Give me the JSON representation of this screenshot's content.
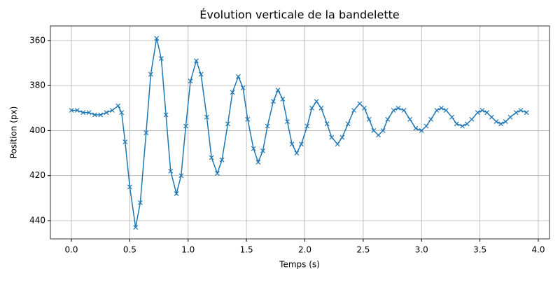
{
  "chart_data": {
    "type": "line",
    "title": "Évolution verticale de la bandelette",
    "x_label": "Temps (s)",
    "y_label": "Position (px)",
    "x": [
      0,
      0.05,
      0.1,
      0.15,
      0.2,
      0.25,
      0.3,
      0.35,
      0.4,
      0.43,
      0.46,
      0.5,
      0.55,
      0.59,
      0.64,
      0.68,
      0.73,
      0.77,
      0.81,
      0.85,
      0.9,
      0.94,
      0.98,
      1.02,
      1.07,
      1.11,
      1.16,
      1.2,
      1.25,
      1.29,
      1.34,
      1.38,
      1.43,
      1.47,
      1.51,
      1.56,
      1.6,
      1.64,
      1.68,
      1.73,
      1.77,
      1.81,
      1.85,
      1.89,
      1.93,
      1.97,
      2.02,
      2.06,
      2.1,
      2.14,
      2.19,
      2.23,
      2.28,
      2.32,
      2.37,
      2.42,
      2.47,
      2.51,
      2.55,
      2.59,
      2.63,
      2.67,
      2.71,
      2.76,
      2.8,
      2.85,
      2.9,
      2.95,
      3.0,
      3.04,
      3.08,
      3.13,
      3.17,
      3.21,
      3.26,
      3.3,
      3.35,
      3.39,
      3.43,
      3.48,
      3.52,
      3.56,
      3.6,
      3.64,
      3.68,
      3.72,
      3.76,
      3.81,
      3.85,
      3.9
    ],
    "values": [
      391,
      391,
      392,
      392,
      393,
      393,
      392,
      391,
      389,
      392,
      405,
      425,
      443,
      432,
      401,
      375,
      359,
      368,
      393,
      418,
      428,
      420,
      398,
      378,
      369,
      375,
      394,
      412,
      419,
      413,
      397,
      383,
      376,
      381,
      395,
      408,
      414,
      409,
      398,
      387,
      382,
      386,
      396,
      406,
      410,
      406,
      398,
      390,
      387,
      390,
      397,
      403,
      406,
      403,
      397,
      391,
      388,
      390,
      395,
      400,
      402,
      400,
      395,
      391,
      390,
      391,
      395,
      399,
      400,
      398,
      395,
      391,
      390,
      391,
      394,
      397,
      398,
      397,
      395,
      392,
      391,
      392,
      394,
      396,
      397,
      396,
      394,
      392,
      391,
      392
    ],
    "color": "#1f77b4",
    "marker": "x",
    "grid": true,
    "xlim": [
      -0.18,
      4.096
    ],
    "ylim": [
      448.1,
      353.5
    ],
    "xticks": [
      {
        "value": 0,
        "label": "0.0"
      },
      0.5,
      {
        "value": 1,
        "label": "1.0"
      },
      1.5,
      {
        "value": 2,
        "label": "2.0"
      },
      2.5,
      {
        "value": 3,
        "label": "3.0"
      },
      3.5,
      {
        "value": 4,
        "label": "4.0"
      }
    ],
    "yticks": [
      360,
      380,
      400,
      420,
      440
    ]
  }
}
